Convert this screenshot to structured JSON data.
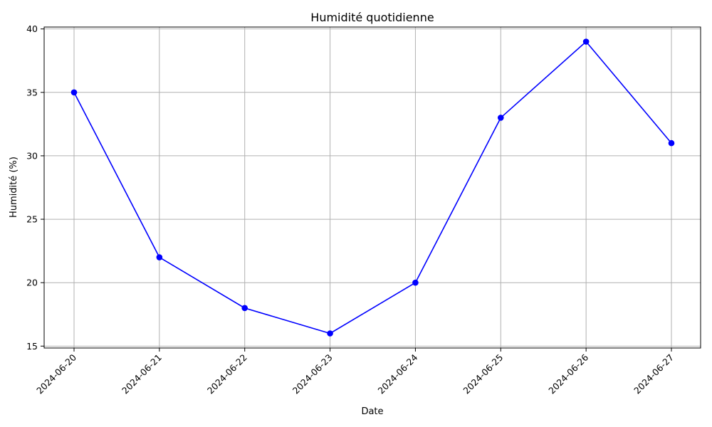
{
  "chart_data": {
    "type": "line",
    "title": "Humidité quotidienne",
    "xlabel": "Date",
    "ylabel": "Humidité (%)",
    "categories": [
      "2024-06-20",
      "2024-06-21",
      "2024-06-22",
      "2024-06-23",
      "2024-06-24",
      "2024-06-25",
      "2024-06-26",
      "2024-06-27"
    ],
    "series": [
      {
        "values": [
          35,
          22,
          18,
          16,
          20,
          33,
          39,
          31
        ],
        "color": "#0000ff"
      }
    ],
    "yticks": [
      15,
      20,
      25,
      30,
      35,
      40
    ],
    "ylim": [
      14.85,
      40.15
    ],
    "grid": true,
    "x_tick_rotation": "45 degrees"
  }
}
